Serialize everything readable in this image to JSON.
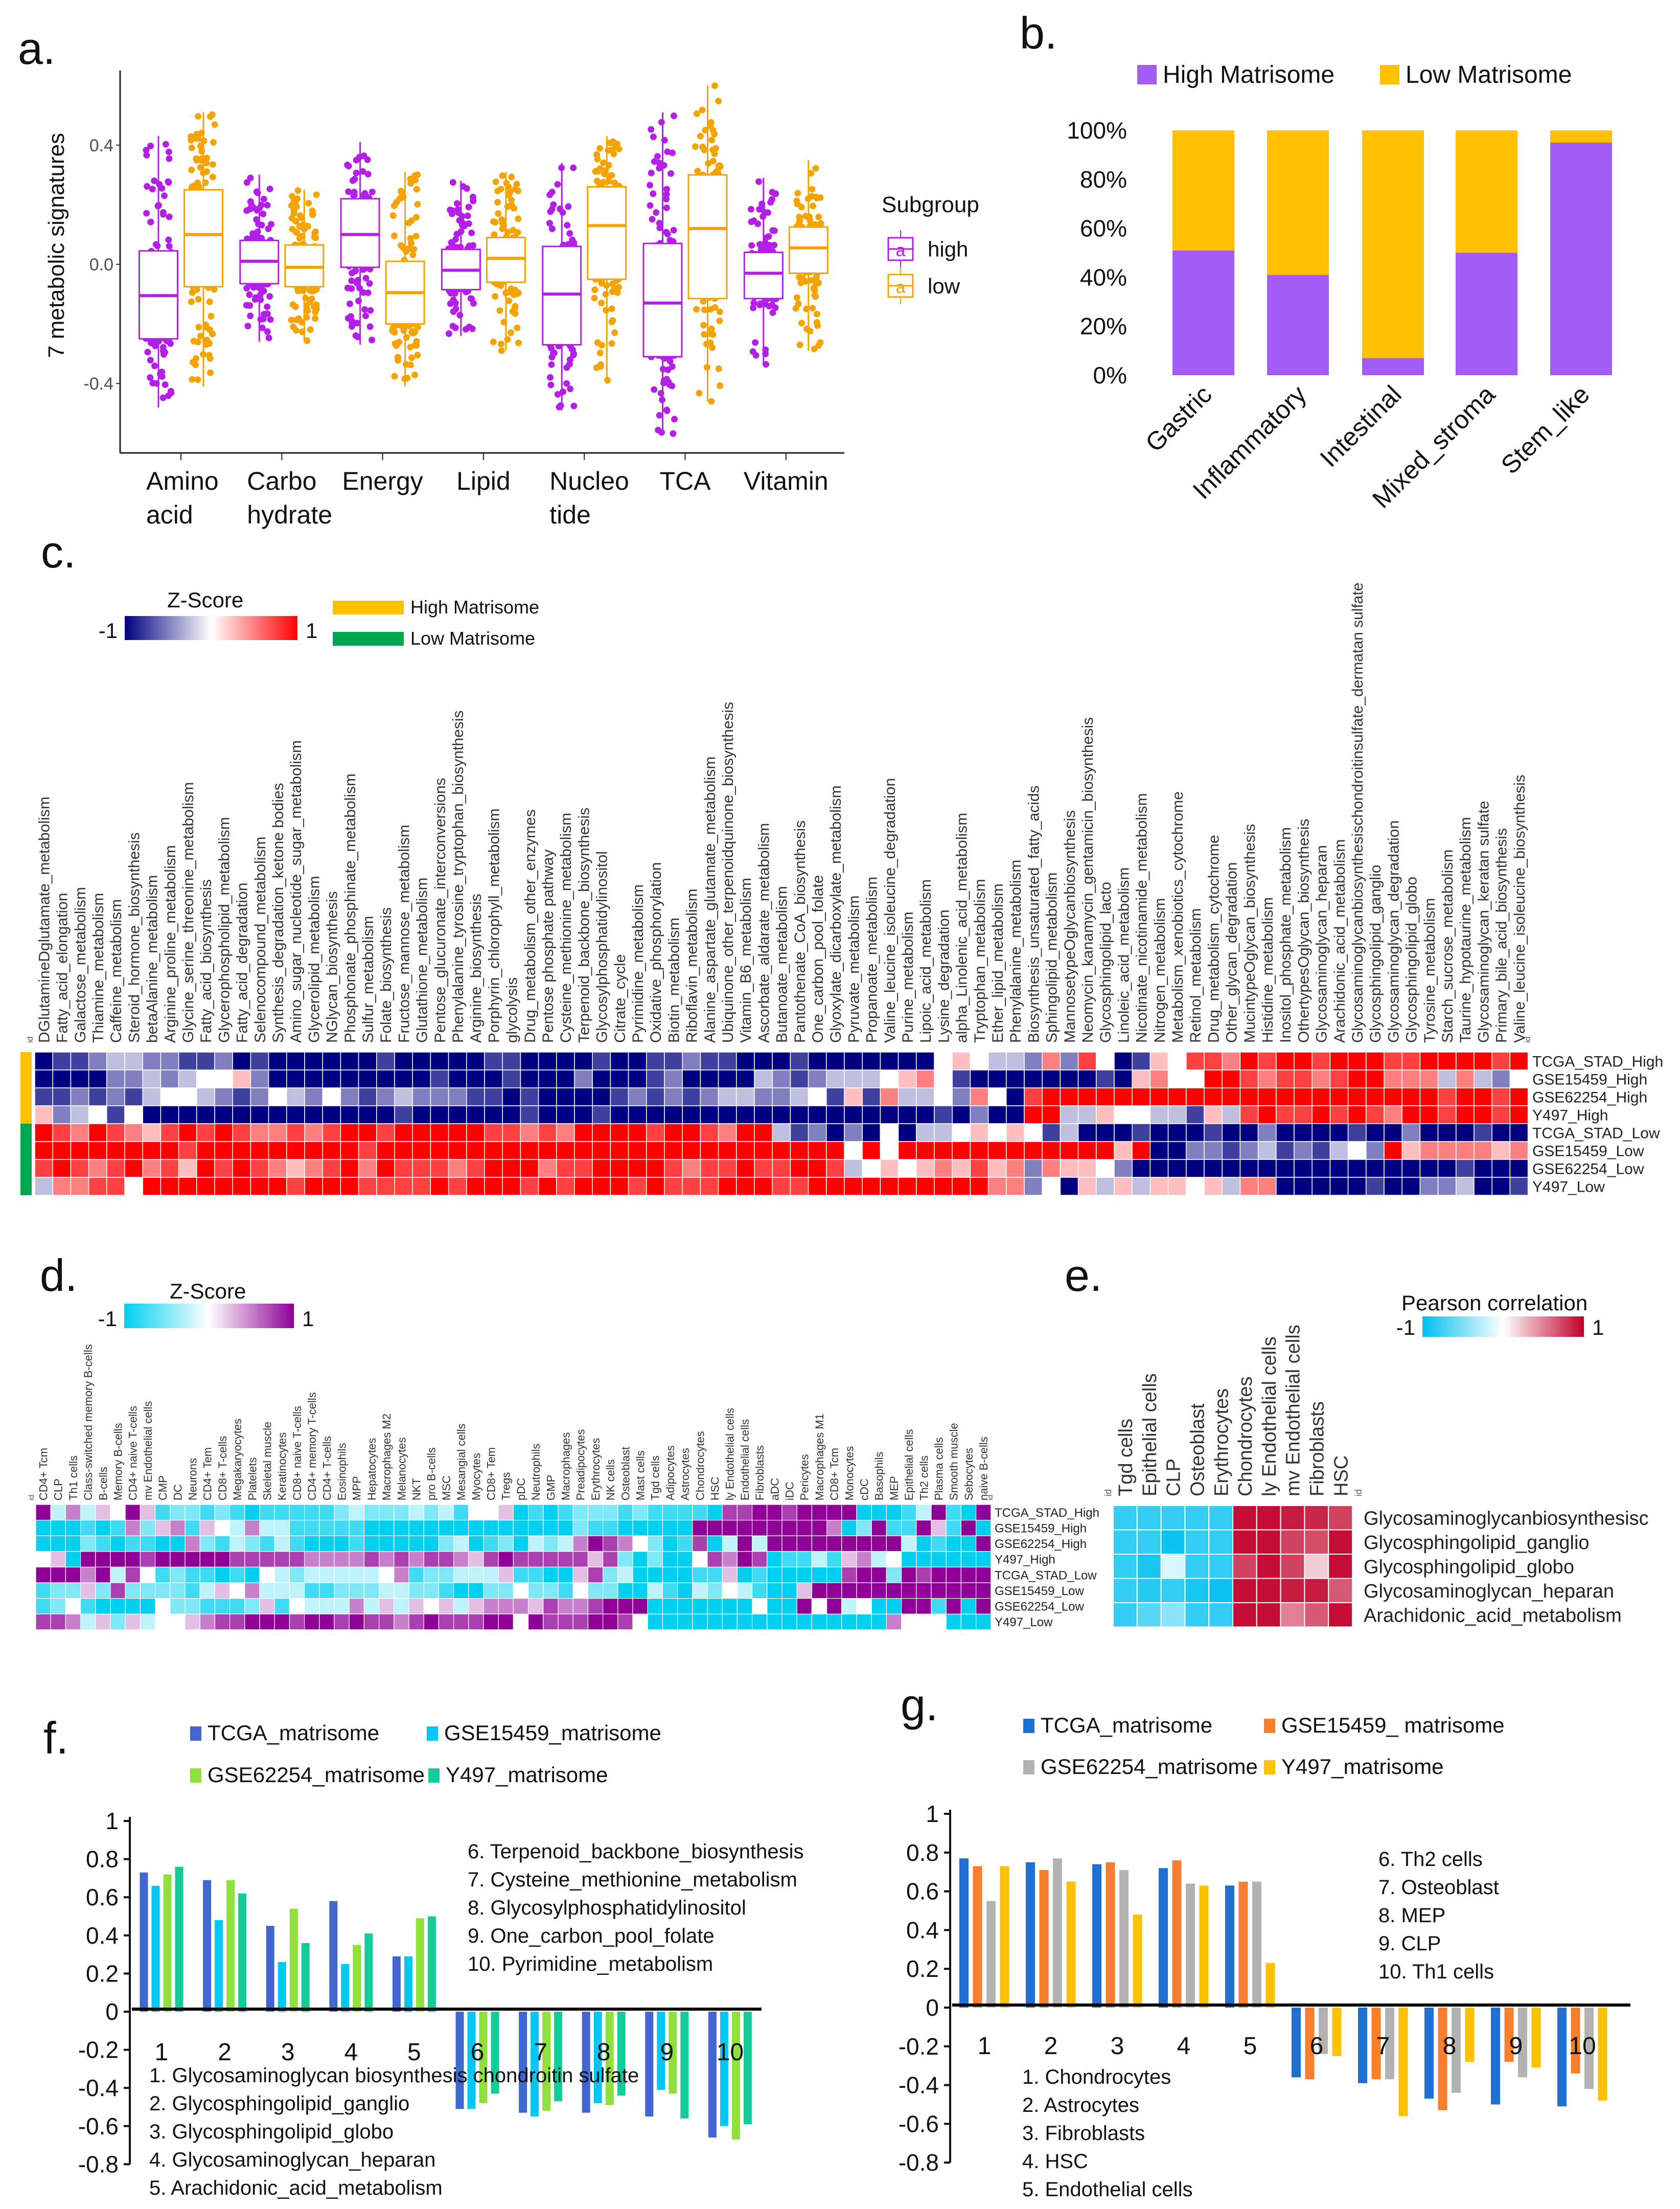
{
  "panel_labels": {
    "a": "a.",
    "b": "b.",
    "c": "c.",
    "d": "d.",
    "e": "e.",
    "f": "f.",
    "g": "g."
  },
  "panel_a": {
    "chart_data": {
      "type": "box",
      "ylabel": "7 metabolic signatures",
      "yticks": [
        {
          "label": "0.4",
          "value": 0.4
        },
        {
          "label": "0.0",
          "value": 0.0
        },
        {
          "label": "-0.4",
          "value": -0.4
        }
      ],
      "ylim": [
        -0.64,
        0.65
      ],
      "categories": [
        [
          "Amino",
          "acid"
        ],
        [
          "Carbo",
          "hydrate"
        ],
        [
          "Energy"
        ],
        [
          "Lipid"
        ],
        [
          "Nucleo",
          "tide"
        ],
        [
          "TCA"
        ],
        [
          "Vitamin"
        ]
      ],
      "legend_title": "Subgroup",
      "legend_glyph": "a",
      "series": [
        {
          "name": "high",
          "color": "#B41FE8",
          "stats": [
            [
              -0.48,
              -0.25,
              -0.105,
              0.045,
              0.43
            ],
            [
              -0.26,
              -0.065,
              0.01,
              0.08,
              0.3
            ],
            [
              -0.27,
              -0.01,
              0.1,
              0.22,
              0.41
            ],
            [
              -0.24,
              -0.085,
              -0.02,
              0.05,
              0.28
            ],
            [
              -0.49,
              -0.27,
              -0.1,
              0.06,
              0.34
            ],
            [
              -0.57,
              -0.31,
              -0.13,
              0.07,
              0.51
            ],
            [
              -0.34,
              -0.115,
              -0.03,
              0.04,
              0.29
            ]
          ]
        },
        {
          "name": "low",
          "color": "#F5A300",
          "stats": [
            [
              -0.41,
              -0.075,
              0.1,
              0.25,
              0.51
            ],
            [
              -0.26,
              -0.075,
              -0.01,
              0.065,
              0.25
            ],
            [
              -0.41,
              -0.2,
              -0.095,
              0.01,
              0.31
            ],
            [
              -0.29,
              -0.06,
              0.02,
              0.09,
              0.31
            ],
            [
              -0.39,
              -0.05,
              0.13,
              0.26,
              0.43
            ],
            [
              -0.46,
              -0.115,
              0.12,
              0.3,
              0.6
            ],
            [
              -0.29,
              -0.03,
              0.055,
              0.125,
              0.35
            ]
          ]
        }
      ]
    }
  },
  "panel_b": {
    "chart_data": {
      "type": "bar",
      "stacked": true,
      "categories": [
        "Gastric",
        "Inflammatory",
        "Intestinal",
        "Mixed_stroma",
        "Stem_like"
      ],
      "yticks": [
        {
          "label": "0%",
          "value": 0
        },
        {
          "label": "20%",
          "value": 20
        },
        {
          "label": "40%",
          "value": 40
        },
        {
          "label": "60%",
          "value": 60
        },
        {
          "label": "80%",
          "value": 80
        },
        {
          "label": "100%",
          "value": 100
        }
      ],
      "ylim": [
        0,
        100
      ],
      "legend": "top",
      "series": [
        {
          "name": "High Matrisome",
          "color": "#A35DF5",
          "values": [
            51,
            41,
            7,
            50,
            95
          ]
        },
        {
          "name": "Low Matrisome",
          "color": "#FFC000",
          "values": [
            49,
            59,
            93,
            50,
            5
          ]
        }
      ]
    }
  },
  "panel_c": {
    "chart_data": {
      "type": "heatmap",
      "legend_title": "Z-Score",
      "scale_min": "-1",
      "scale_max": "1",
      "colors": {
        "low": "#000080",
        "mid": "#FFFFFF",
        "high": "#FF0000"
      },
      "id_label": "id",
      "group_legend": [
        {
          "label": "High Matrisome",
          "color": "#FFC000"
        },
        {
          "label": "Low Matrisome",
          "color": "#00A74F"
        }
      ],
      "level_scale": "digits 0-8 map to z-score -1..1",
      "columns": [
        "DGlutamineDglutamate_metabolism",
        "Fatty_acid_elongation",
        "Galactose_metabolism",
        "Thiamine_metabolism",
        "Caffeine_metabolism",
        "Steroid_hormone_biosynthesis",
        "betaAlanine_metabolism",
        "Arginine_proline_metabolism",
        "Glycine_serine_threonine_metabolism",
        "Fatty_acid_biosynthesis",
        "Glycerophospholipid_metabolism",
        "Fatty_acid_degradation",
        "Selenocompound_metabolism",
        "Synthesis_degradation_ketone bodies",
        "Amino_sugar_nucleotide_sugar_metabolism",
        "Glycerolipid_metabolism",
        "NGlycan_biosynthesis",
        "Phosphonate_phosphinate_metabolism",
        "Sulfur_metabolism",
        "Folate_biosynthesis",
        "Fructose_mannose_metabolism",
        "Glutathione_metabolism",
        "Pentose_glucuronate_interconversions",
        "Phenylalanine_tyrosine_tryptophan_biosynthesis",
        "Arginine_biosynthesis",
        "Porphyrin_chlorophyll_metabolism",
        "glycolysis",
        "Drug_metabolism_other_enzymes",
        "Pentose phosphate pathway",
        "Cysteine_methionine_metabolism",
        "Terpenoid_backbone_biosynthesis",
        "Glycosylphosphatidylinositol",
        "Citrate_cycle",
        "Pyrimidine_metabolism",
        "Oxidative_phosphorylation",
        "Biotin_metabolism",
        "Riboflavin_metabolism",
        "Alanine_aspartate_glutamate_metabolism",
        "Ubiquinone_other_terpenoidquinone_biosynthesis",
        "Vitamin_B6_metabolism",
        "Ascorbate_aldarate_metabolism",
        "Butanoate_metabolism",
        "Pantothenate_CoA_biosynthesis",
        "One_carbon_pool_folate",
        "Glyoxylate_dicarboxylate_metabolism",
        "Pyruvate_metabolism",
        "Propanoate_metabolism",
        "Valine_leucine_isoleucine_degradation",
        "Purine_metabolism",
        "Lipoic_acid_metabolism",
        "Lysine_degradation",
        "alpha_Linolenic_acid_metabolism",
        "Tryptophan_metabolism",
        "Ether_lipid_metabolism",
        "Phenylalanine_metabolism",
        "Biosynthesis_unsaturated_fatty_acids",
        "Sphingolipid_metabolism",
        "MannosetypeOglycanbiosynthesis",
        "Neomycin_kanamycin_gentamicin_biosynthesis",
        "Glycosphingolipid_lacto",
        "Linoleic_acid_metabolism",
        "Nicotinate_nicotinamide_metabolism",
        "Nitrogen_metabolism",
        "Metabolism_xenobiotics_cytochrome",
        "Retinol_metabolism",
        "Drug_metabolism_cytochrome",
        "Other_glycan_degradation",
        "MucintypeOglycan_biosynthesis",
        "Histidine_metabolism",
        "Inositol_phosphate_metabolism",
        "OthertypesOglycan_biosynthesis",
        "Glycosaminoglycan_heparan",
        "Arachidonic_acid_metabolism",
        "Glycosaminoglycanbiosynthesischondroitinsulfate_dermatan sulfate",
        "Glycosphingolipid_ganglio",
        "Glycosaminoglycan_degradation",
        "Glycosphingolipid_globo",
        "Tyrosine_metabolism",
        "Starch_sucrose_metabolism",
        "Taurine_hypotaurine_metabolism",
        "Glycosaminoglycan_keratan sulfate",
        "Primary_bile_acid_biosynthesis",
        "Valine_leucine_isoleucine_biosynthesis"
      ],
      "rows": [
        {
          "label": "TCGA_STAD_High",
          "group": 0,
          "levels": "01123322112010000001000001100001001121100010000000454332627401547768788788877888878"
        },
        {
          "label": "GSE15459_High",
          "group": 0,
          "levels": "00002232344520000000001000100020001200003212333456410000000105644887677678866636324"
        },
        {
          "label": "GSE62254_High",
          "group": 0,
          "levels": "11212134432124324212322211010000121212332234151633426407888888888888888888888878878"
        },
        {
          "label": "Y497_High",
          "group": 0,
          "levels": "52341400000000000000100000010001000000000000000000102008833544331537877878768878878"
        },
        {
          "label": "TCGA_STAD_Low",
          "group": 1,
          "levels": "87687657878766767887888887767688887887688312020403345454130001000100200001002000100"
        },
        {
          "label": "GSE15459_Low",
          "group": 1,
          "levels": "88888888788888888878888888888888888888888888848488888888888858002212312134285666656"
        },
        {
          "label": "GSE62254_Low",
          "group": 1,
          "levels": "78767867587876567868777678886778888767787788734545657562655420000000000000000001000"
        },
        {
          "label": "Y497_Low",
          "group": 1,
          "levels": "36677488888888788877778788878788878777888778888888888662405353554536600000100223001"
        }
      ]
    }
  },
  "panel_d": {
    "chart_data": {
      "type": "heatmap",
      "legend_title": "Z-Score",
      "scale_min": "-1",
      "scale_max": "1",
      "colors": {
        "low": "#00CFEF",
        "mid": "#FFFFFF",
        "high": "#8E0096"
      },
      "id_label": "id",
      "level_scale": "digits 0-8 map to z-score -1..1",
      "columns": [
        "CD4+ Tcm",
        "CLP",
        "Th1 cells",
        "Class-switched memory B-cells",
        "B-cells",
        "Memory B-cells",
        "CD4+ naive T-cells",
        "mv Endothelial cells",
        "CMP",
        "DC",
        "Neurons",
        "CD4+ Tem",
        "CD8+ T-cells",
        "Megakaryocytes",
        "Platelets",
        "Skeletal muscle",
        "Keratinocytes",
        "CD8+ naive T-cells",
        "CD4+ memory T-cells",
        "CD4+ T-cells",
        "Eosinophils",
        "MPP",
        "Hepatocytes",
        "Macrophages M2",
        "Melanocytes",
        "NKT",
        "pro B-cells",
        "MSC",
        "Mesangial cells",
        "Myocytes",
        "CD8+ Tem",
        "Tregs",
        "pDC",
        "Neutrophils",
        "GMP",
        "Macrophages",
        "Preadipocytes",
        "Erythrocytes",
        "NK cells",
        "Osteoblast",
        "Mast cells",
        "Tgd cells",
        "Adipocytes",
        "Astrocytes",
        "Chondrocytes",
        "HSC",
        "ly Endothelial cells",
        "Endothelial cells",
        "Fibroblasts",
        "aDC",
        "iDC",
        "Pericytes",
        "Macrophages M1",
        "CD8+ Tcm",
        "Monocytes",
        "cDC",
        "Basophils",
        "MEP",
        "Epithelial cells",
        "Th2 cells",
        "Plasma cells",
        "Smooth muscle",
        "Sebocytes",
        "naive B-cells"
      ],
      "rows": [
        {
          "label": "TCGA_STAD_High",
          "levels": "8363548512212101111123222323144501012221211110778878888000138108"
        },
        {
          "label": "GSE15459_High",
          "levels": "0001016256154363311111000000000000002110000088888888860281185180"
        },
        {
          "label": "GSE62254_High",
          "levels": "0002101100621321310001000002301203236876420170383888888888301008"
        },
        {
          "label": "Y497_High",
          "levels": "4508888788888777776666767677657877777572020047687011315634000000"
        },
        {
          "label": "TCGA_STAD_Low",
          "levels": "8886837412110104323333346122333511005723000011501000007882878888"
        },
        {
          "label": "GSE15459_Low",
          "levels": "1225272222135463331122233221002242214220031032431005888888888888"
        },
        {
          "label": "GSE62254_Low",
          "levels": "1241000042211125143336353545356665766788800000004008483400881808"
        },
        {
          "label": "Y497_Low",
          "levels": "7763525344567788878878776787778848777887400000000000000006444000"
        }
      ]
    }
  },
  "panel_e": {
    "chart_data": {
      "type": "heatmap",
      "legend_title": "Pearson correlation",
      "scale_min": "-1",
      "scale_max": "1",
      "colors": {
        "low": "#00BFEF",
        "mid": "#FFFFFF",
        "high": "#C0002A"
      },
      "id_label": "id",
      "columns": [
        "Tgd cells",
        "Epithelial cells",
        "CLP",
        "Osteoblast",
        "Erythrocytes",
        "Chondrocytes",
        "ly Endothelial cells",
        "mv Endothelial cells",
        "Fibroblasts",
        "HSC"
      ],
      "rows": [
        {
          "label": "Glycosaminoglycanbiosynthesisc",
          "values": [
            -0.8,
            -0.8,
            -0.8,
            -0.8,
            -0.8,
            0.95,
            0.95,
            0.9,
            0.85,
            0.75
          ]
        },
        {
          "label": "Glycosphingolipid_ganglio",
          "values": [
            -0.8,
            -0.8,
            -0.95,
            -0.8,
            -0.8,
            0.95,
            0.95,
            0.75,
            0.7,
            0.95
          ]
        },
        {
          "label": "Glycosphingolipid_globo",
          "values": [
            -0.8,
            -0.9,
            -0.15,
            -0.8,
            -0.8,
            0.75,
            0.95,
            0.75,
            0.2,
            0.95
          ]
        },
        {
          "label": "Glycosaminoglycan_heparan",
          "values": [
            -0.8,
            -0.85,
            -0.8,
            -0.9,
            -0.95,
            0.95,
            0.95,
            0.9,
            0.9,
            0.65
          ]
        },
        {
          "label": "Arachidonic_acid_metabolism",
          "values": [
            -0.8,
            -0.65,
            -0.45,
            -0.8,
            -0.8,
            0.95,
            0.95,
            0.5,
            0.65,
            0.95
          ]
        }
      ]
    }
  },
  "panel_f": {
    "chart_data": {
      "type": "bar",
      "categories": [
        "1",
        "2",
        "3",
        "4",
        "5",
        "6",
        "7",
        "8",
        "9",
        "10"
      ],
      "ylim": [
        -0.8,
        1
      ],
      "yticks": [
        {
          "label": "1",
          "value": 1
        },
        {
          "label": "0.8",
          "value": 0.8
        },
        {
          "label": "0.6",
          "value": 0.6
        },
        {
          "label": "0.4",
          "value": 0.4
        },
        {
          "label": "0.2",
          "value": 0.2
        },
        {
          "label": "0",
          "value": 0
        },
        {
          "label": "-0.2",
          "value": -0.2
        },
        {
          "label": "-0.4",
          "value": -0.4
        },
        {
          "label": "-0.6",
          "value": -0.6
        },
        {
          "label": "-0.8",
          "value": -0.8
        }
      ],
      "series": [
        {
          "name": "TCGA_matrisome",
          "color": "#4166D0",
          "values": [
            0.73,
            0.69,
            0.45,
            0.58,
            0.29,
            -0.51,
            -0.53,
            -0.53,
            -0.55,
            -0.66
          ]
        },
        {
          "name": "GSE15459_matrisome",
          "color": "#00C8F2",
          "values": [
            0.66,
            0.48,
            0.26,
            0.25,
            0.29,
            -0.51,
            -0.55,
            -0.48,
            -0.41,
            -0.6
          ]
        },
        {
          "name": "GSE62254_matrisome",
          "color": "#8FE03A",
          "values": [
            0.72,
            0.69,
            0.54,
            0.35,
            0.49,
            -0.48,
            -0.52,
            -0.49,
            -0.43,
            -0.67
          ]
        },
        {
          "name": "Y497_matrisome",
          "color": "#14CC99",
          "values": [
            0.76,
            0.62,
            0.36,
            0.41,
            0.5,
            -0.43,
            -0.47,
            -0.44,
            -0.56,
            -0.59
          ]
        }
      ],
      "notes_top": [
        "6. Terpenoid_backbone_biosynthesis",
        "7. Cysteine_methionine_metabolism",
        "8. Glycosylphosphatidylinositol",
        "9. One_carbon_pool_folate",
        "10. Pyrimidine_metabolism"
      ],
      "notes_bottom": [
        "1. Glycosaminoglycan biosynthesis chondroitin sulfate",
        "2. Glycosphingolipid_ganglio",
        "3. Glycosphingolipid_globo",
        "4. Glycosaminoglycan_heparan",
        "5. Arachidonic_acid_metabolism"
      ]
    }
  },
  "panel_g": {
    "chart_data": {
      "type": "bar",
      "categories": [
        "1",
        "2",
        "3",
        "4",
        "5",
        "6",
        "7",
        "8",
        "9",
        "10"
      ],
      "ylim": [
        -0.8,
        1
      ],
      "yticks": [
        {
          "label": "1",
          "value": 1
        },
        {
          "label": "0.8",
          "value": 0.8
        },
        {
          "label": "0.6",
          "value": 0.6
        },
        {
          "label": "0.4",
          "value": 0.4
        },
        {
          "label": "0.2",
          "value": 0.2
        },
        {
          "label": "0",
          "value": 0
        },
        {
          "label": "-0.2",
          "value": -0.2
        },
        {
          "label": "-0.4",
          "value": -0.4
        },
        {
          "label": "-0.6",
          "value": -0.6
        },
        {
          "label": "-0.8",
          "value": -0.8
        }
      ],
      "series": [
        {
          "name": "TCGA_matrisome",
          "color": "#1F6FD0",
          "values": [
            0.77,
            0.75,
            0.74,
            0.72,
            0.63,
            -0.36,
            -0.39,
            -0.47,
            -0.5,
            -0.51
          ]
        },
        {
          "name": "GSE15459_ matrisome",
          "color": "#F97F2F",
          "values": [
            0.73,
            0.71,
            0.75,
            0.76,
            0.65,
            -0.37,
            -0.37,
            -0.53,
            -0.28,
            -0.34
          ]
        },
        {
          "name": "GSE62254_matrisome",
          "color": "#B3B3B3",
          "values": [
            0.55,
            0.77,
            0.71,
            0.64,
            0.65,
            -0.24,
            -0.37,
            -0.44,
            -0.36,
            -0.42
          ]
        },
        {
          "name": "Y497_matrisome",
          "color": "#FFC000",
          "values": [
            0.73,
            0.65,
            0.48,
            0.63,
            0.23,
            -0.25,
            -0.56,
            -0.28,
            -0.31,
            -0.48
          ]
        }
      ],
      "notes_top": [
        "6. Th2 cells",
        "7. Osteoblast",
        "8. MEP",
        "9. CLP",
        "10. Th1 cells"
      ],
      "notes_bottom": [
        "1. Chondrocytes",
        "2. Astrocytes",
        "3. Fibroblasts",
        "4. HSC",
        "5. Endothelial cells"
      ]
    }
  }
}
